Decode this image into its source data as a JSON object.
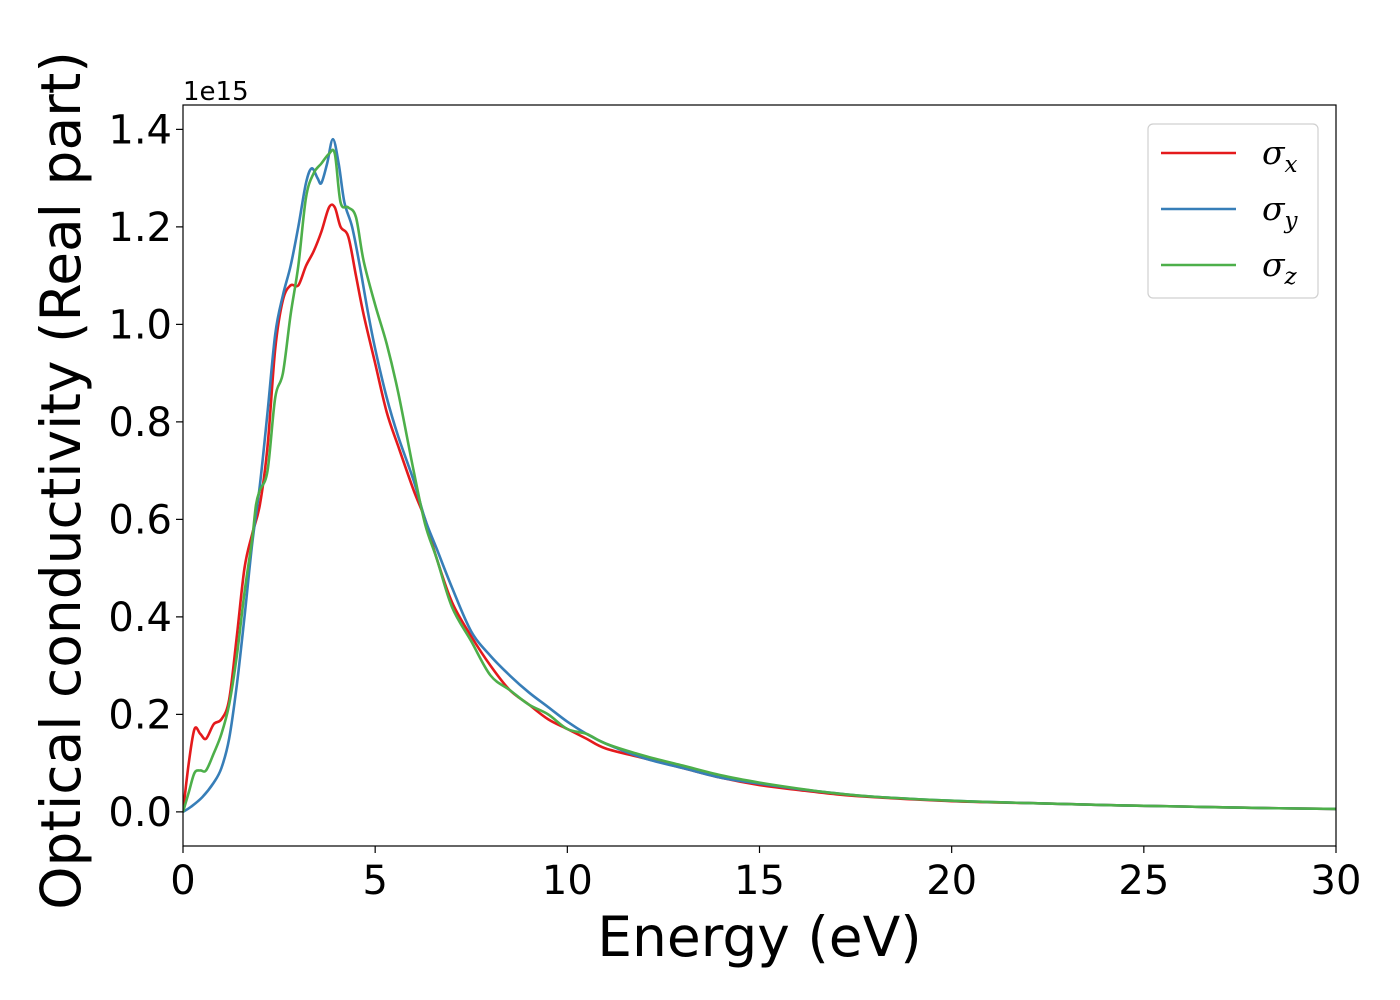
{
  "chart_data": {
    "type": "line",
    "title": "",
    "xlabel": "Energy (eV)",
    "ylabel": "Optical conductivity (Real part)",
    "y_offset_label": "1e15",
    "xlim": [
      0,
      30
    ],
    "ylim": [
      -0.07,
      1.45
    ],
    "y_scale_factor": 1000000000000000.0,
    "x_ticks": [
      0,
      5,
      10,
      15,
      20,
      25,
      30
    ],
    "x_tick_labels": [
      "0",
      "5",
      "10",
      "15",
      "20",
      "25",
      "30"
    ],
    "y_ticks": [
      0.0,
      0.2,
      0.4,
      0.6,
      0.8,
      1.0,
      1.2,
      1.4
    ],
    "y_tick_labels": [
      "0.0",
      "0.2",
      "0.4",
      "0.6",
      "0.8",
      "1.0",
      "1.2",
      "1.4"
    ],
    "grid": false,
    "legend_position": "top-right",
    "series": [
      {
        "name": "σx",
        "symbol": "σ",
        "subscript": "x",
        "color": "#e41a1c",
        "x": [
          0,
          0.15,
          0.3,
          0.45,
          0.6,
          0.8,
          1.0,
          1.2,
          1.4,
          1.6,
          1.8,
          2.0,
          2.2,
          2.4,
          2.6,
          2.8,
          3.0,
          3.2,
          3.4,
          3.6,
          3.8,
          3.95,
          4.1,
          4.3,
          4.5,
          4.7,
          5.0,
          5.3,
          5.6,
          6.0,
          6.3,
          6.6,
          7.0,
          7.5,
          8.0,
          8.5,
          9.0,
          9.5,
          10.0,
          10.5,
          11.0,
          12.0,
          13.0,
          14.0,
          15.0,
          16.0,
          17.0,
          18.0,
          20.0,
          22.0,
          24.0,
          26.0,
          28.0,
          30.0
        ],
        "y": [
          0.0,
          0.1,
          0.17,
          0.16,
          0.15,
          0.18,
          0.19,
          0.23,
          0.36,
          0.5,
          0.57,
          0.63,
          0.75,
          0.95,
          1.05,
          1.08,
          1.08,
          1.12,
          1.15,
          1.19,
          1.24,
          1.24,
          1.2,
          1.18,
          1.1,
          1.02,
          0.92,
          0.82,
          0.75,
          0.66,
          0.6,
          0.52,
          0.43,
          0.36,
          0.3,
          0.25,
          0.22,
          0.19,
          0.17,
          0.15,
          0.13,
          0.11,
          0.09,
          0.07,
          0.055,
          0.045,
          0.036,
          0.03,
          0.022,
          0.018,
          0.014,
          0.011,
          0.008,
          0.006
        ]
      },
      {
        "name": "σy",
        "symbol": "σ",
        "subscript": "y",
        "color": "#377eb8",
        "x": [
          0,
          0.2,
          0.5,
          0.8,
          1.0,
          1.2,
          1.4,
          1.6,
          1.8,
          2.0,
          2.2,
          2.4,
          2.6,
          2.8,
          3.0,
          3.2,
          3.35,
          3.5,
          3.6,
          3.75,
          3.9,
          4.05,
          4.2,
          4.4,
          4.6,
          4.8,
          5.0,
          5.3,
          5.6,
          6.0,
          6.3,
          6.6,
          7.0,
          7.5,
          8.0,
          8.5,
          9.0,
          9.5,
          10.0,
          10.5,
          11.0,
          12.0,
          13.0,
          14.0,
          15.0,
          16.0,
          17.0,
          18.0,
          20.0,
          22.0,
          24.0,
          26.0,
          28.0,
          30.0
        ],
        "y": [
          0.0,
          0.01,
          0.03,
          0.06,
          0.09,
          0.15,
          0.26,
          0.4,
          0.55,
          0.67,
          0.82,
          0.98,
          1.06,
          1.12,
          1.2,
          1.29,
          1.32,
          1.3,
          1.29,
          1.33,
          1.38,
          1.33,
          1.25,
          1.2,
          1.12,
          1.03,
          0.95,
          0.85,
          0.77,
          0.68,
          0.6,
          0.54,
          0.46,
          0.37,
          0.32,
          0.28,
          0.245,
          0.215,
          0.185,
          0.16,
          0.14,
          0.11,
          0.09,
          0.07,
          0.058,
          0.047,
          0.038,
          0.031,
          0.023,
          0.018,
          0.014,
          0.011,
          0.008,
          0.006
        ]
      },
      {
        "name": "σz",
        "symbol": "σ",
        "subscript": "z",
        "color": "#4daf4a",
        "x": [
          0,
          0.15,
          0.3,
          0.45,
          0.6,
          0.8,
          1.0,
          1.2,
          1.4,
          1.6,
          1.8,
          1.9,
          2.0,
          2.2,
          2.4,
          2.6,
          2.8,
          3.0,
          3.2,
          3.4,
          3.6,
          3.8,
          3.95,
          4.1,
          4.3,
          4.5,
          4.7,
          5.0,
          5.3,
          5.6,
          6.0,
          6.3,
          6.6,
          7.0,
          7.5,
          8.0,
          8.5,
          9.0,
          9.5,
          10.0,
          10.5,
          11.0,
          12.0,
          13.0,
          14.0,
          15.0,
          16.0,
          17.0,
          18.0,
          20.0,
          22.0,
          24.0,
          26.0,
          28.0,
          30.0
        ],
        "y": [
          0.0,
          0.04,
          0.08,
          0.085,
          0.085,
          0.12,
          0.16,
          0.22,
          0.32,
          0.45,
          0.56,
          0.63,
          0.66,
          0.7,
          0.85,
          0.9,
          1.02,
          1.12,
          1.26,
          1.31,
          1.33,
          1.35,
          1.35,
          1.25,
          1.24,
          1.22,
          1.13,
          1.04,
          0.96,
          0.86,
          0.7,
          0.59,
          0.52,
          0.42,
          0.35,
          0.28,
          0.25,
          0.22,
          0.2,
          0.17,
          0.16,
          0.14,
          0.115,
          0.095,
          0.075,
          0.06,
          0.048,
          0.038,
          0.031,
          0.023,
          0.018,
          0.014,
          0.011,
          0.008,
          0.006
        ]
      }
    ]
  }
}
